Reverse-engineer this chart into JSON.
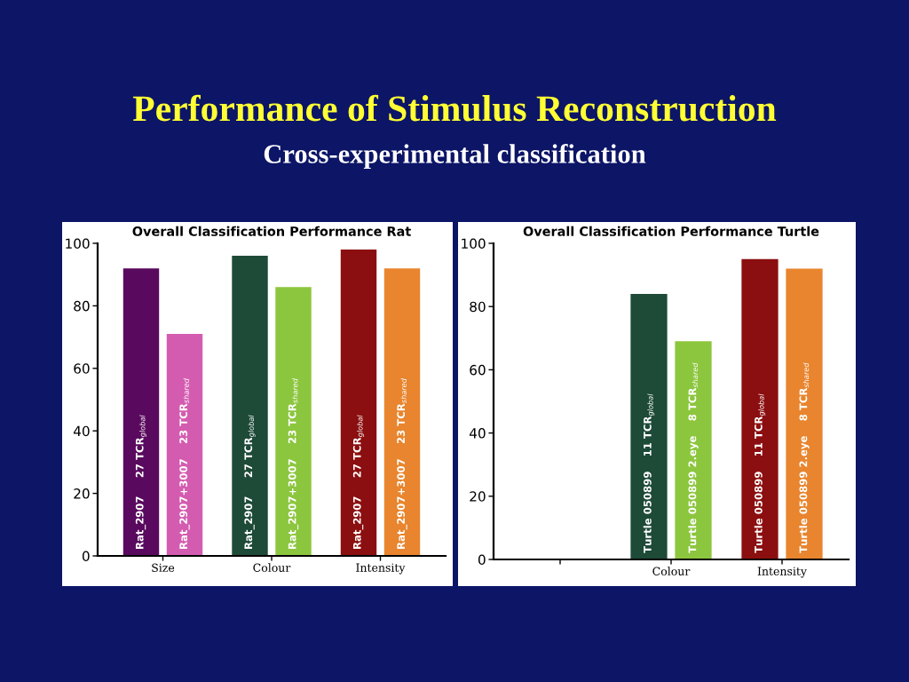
{
  "chart_data": [
    {
      "type": "bar",
      "title": "Overall Classification Performance Rat",
      "annotations": [
        "Performance of Stimulus Reconstruction",
        "Cross-experimental classification"
      ],
      "categories": [
        "Size",
        "Colour",
        "Intensity"
      ],
      "ylim": [
        0,
        100
      ],
      "yticks": [
        0,
        20,
        40,
        60,
        80,
        100
      ],
      "grid": false,
      "legend": false,
      "series": [
        {
          "name": "Rat_2907     27 TCR$_{global}$",
          "colors": [
            "#5a0a5e",
            "#1e4a38",
            "#8b0f10"
          ],
          "values": [
            92,
            96,
            98
          ]
        },
        {
          "name": "Rat_2907+3007    23 TCR$_{shared}$",
          "colors": [
            "#d45cb0",
            "#8cc63e",
            "#e8852e"
          ],
          "values": [
            71,
            86,
            92
          ]
        }
      ]
    },
    {
      "type": "bar",
      "title": "Overall Classification Performance Turtle",
      "categories": [
        null,
        "Colour",
        "Intensity"
      ],
      "ylim": [
        0,
        100
      ],
      "yticks": [
        0,
        20,
        40,
        60,
        80,
        100
      ],
      "grid": false,
      "legend": false,
      "series": [
        {
          "name": "Turtle 050899    11 TCR$_{global}$",
          "colors": [
            "#1e4a38",
            "#1e4a38",
            "#8b0f10"
          ],
          "values": [
            null,
            84,
            95
          ]
        },
        {
          "name": "Turtle 050899 2.eye    8 TCR$_{shared}$",
          "colors": [
            "#8cc63e",
            "#8cc63e",
            "#e8852e"
          ],
          "values": [
            null,
            69,
            92
          ]
        }
      ]
    }
  ]
}
